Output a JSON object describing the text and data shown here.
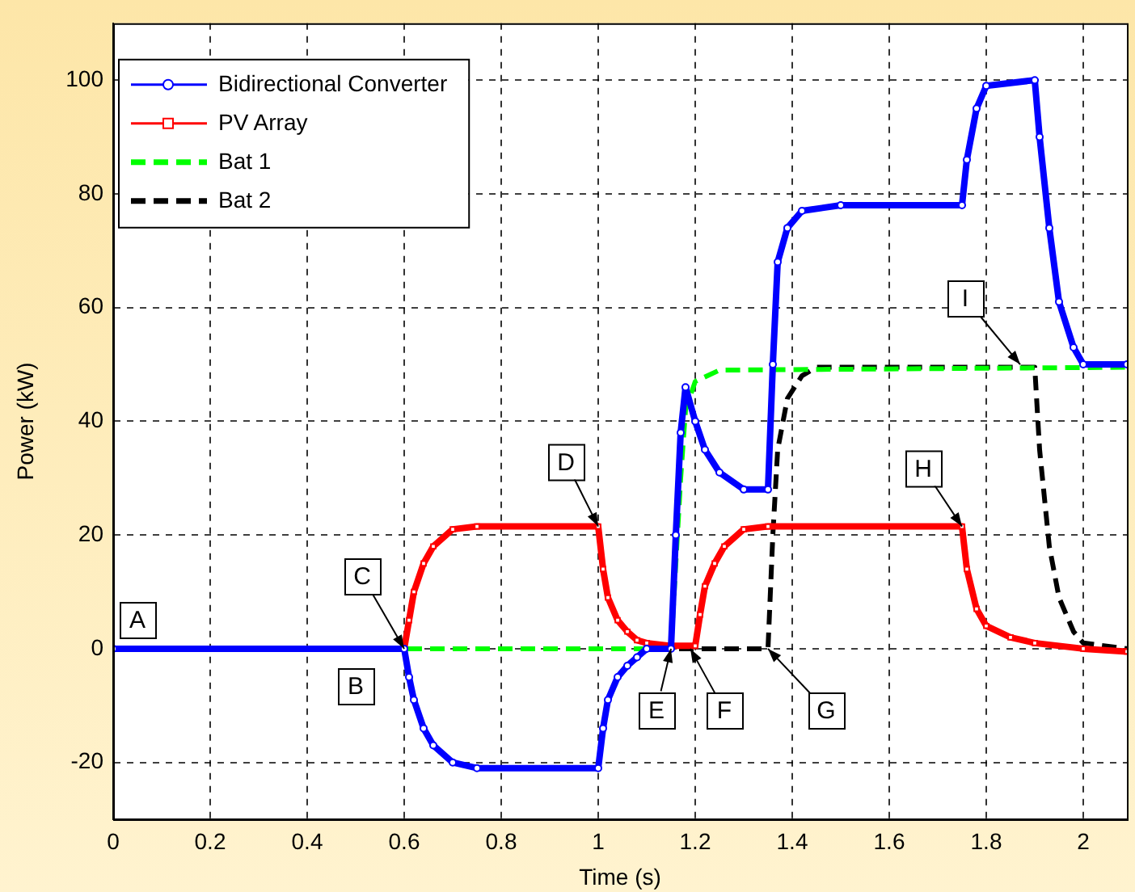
{
  "chart_data": {
    "type": "line",
    "xlabel": "Time (s)",
    "ylabel": "Power (kW)",
    "xlim": [
      0,
      2.09
    ],
    "xticks": [
      0,
      0.2,
      0.4,
      0.6,
      0.8,
      1,
      1.2,
      1.4,
      1.6,
      1.8,
      2
    ],
    "ylim": [
      -30,
      110
    ],
    "yticks": [
      -20,
      0,
      20,
      40,
      60,
      80,
      100
    ],
    "grid": true,
    "legend": "top left",
    "series": [
      {
        "name": "Bidirectional Converter",
        "color": "#0000ff",
        "marker": "circle",
        "line_style": "solid",
        "x": [
          0,
          0.6,
          0.61,
          0.62,
          0.64,
          0.66,
          0.7,
          0.75,
          1.0,
          1.01,
          1.02,
          1.04,
          1.06,
          1.08,
          1.1,
          1.15,
          1.16,
          1.17,
          1.18,
          1.2,
          1.22,
          1.25,
          1.3,
          1.35,
          1.36,
          1.37,
          1.39,
          1.42,
          1.5,
          1.75,
          1.76,
          1.78,
          1.8,
          1.9,
          1.91,
          1.93,
          1.95,
          1.98,
          2.0,
          2.09
        ],
        "values": [
          0,
          0,
          -5,
          -9,
          -14,
          -17,
          -20,
          -21,
          -21,
          -14,
          -9,
          -5,
          -3,
          -1.5,
          0,
          0,
          20,
          38,
          46,
          40,
          35,
          31,
          28,
          28,
          50,
          68,
          74,
          77,
          78,
          78,
          86,
          95,
          99,
          100,
          90,
          74,
          61,
          53,
          50,
          50
        ]
      },
      {
        "name": "PV Array",
        "color": "#ff0000",
        "marker": "square",
        "line_style": "solid",
        "x": [
          0,
          0.6,
          0.61,
          0.62,
          0.64,
          0.66,
          0.7,
          0.75,
          1.0,
          1.01,
          1.02,
          1.04,
          1.06,
          1.08,
          1.1,
          1.15,
          1.2,
          1.21,
          1.22,
          1.24,
          1.26,
          1.3,
          1.35,
          1.75,
          1.76,
          1.78,
          1.8,
          1.85,
          1.9,
          2.0,
          2.09
        ],
        "values": [
          0,
          0,
          5,
          10,
          15,
          18,
          21,
          21.5,
          21.5,
          14,
          9,
          5,
          3,
          1.5,
          1,
          0.5,
          0.5,
          6,
          11,
          15,
          18,
          21,
          21.5,
          21.5,
          14,
          7,
          4,
          2,
          1,
          0,
          -0.5
        ]
      },
      {
        "name": "Bat 1",
        "color": "#00ff00",
        "marker": "none",
        "line_style": "dashed",
        "x": [
          0,
          1.15,
          1.16,
          1.17,
          1.18,
          1.2,
          1.25,
          2.09
        ],
        "values": [
          0,
          0,
          15,
          30,
          42,
          47,
          49,
          49.5
        ]
      },
      {
        "name": "Bat 2",
        "color": "#000000",
        "marker": "none",
        "line_style": "dashed",
        "x": [
          0,
          1.35,
          1.36,
          1.37,
          1.39,
          1.42,
          1.45,
          1.5,
          1.9,
          1.91,
          1.93,
          1.95,
          1.98,
          2.0,
          2.09
        ],
        "values": [
          0,
          0,
          20,
          35,
          44,
          48,
          49.5,
          49.5,
          49.5,
          35,
          18,
          9,
          3,
          1,
          0
        ]
      }
    ],
    "annotations": [
      {
        "text": "A",
        "x": 0.05,
        "y": 0
      },
      {
        "text": "B",
        "x": 0.5,
        "y": 0
      },
      {
        "text": "C",
        "x": 0.6,
        "y": 0
      },
      {
        "text": "D",
        "x": 1.0,
        "y": 21.5
      },
      {
        "text": "E",
        "x": 1.15,
        "y": 0
      },
      {
        "text": "F",
        "x": 1.19,
        "y": 0
      },
      {
        "text": "G",
        "x": 1.35,
        "y": 0
      },
      {
        "text": "H",
        "x": 1.75,
        "y": 21.5
      },
      {
        "text": "I",
        "x": 1.87,
        "y": 50
      }
    ]
  }
}
